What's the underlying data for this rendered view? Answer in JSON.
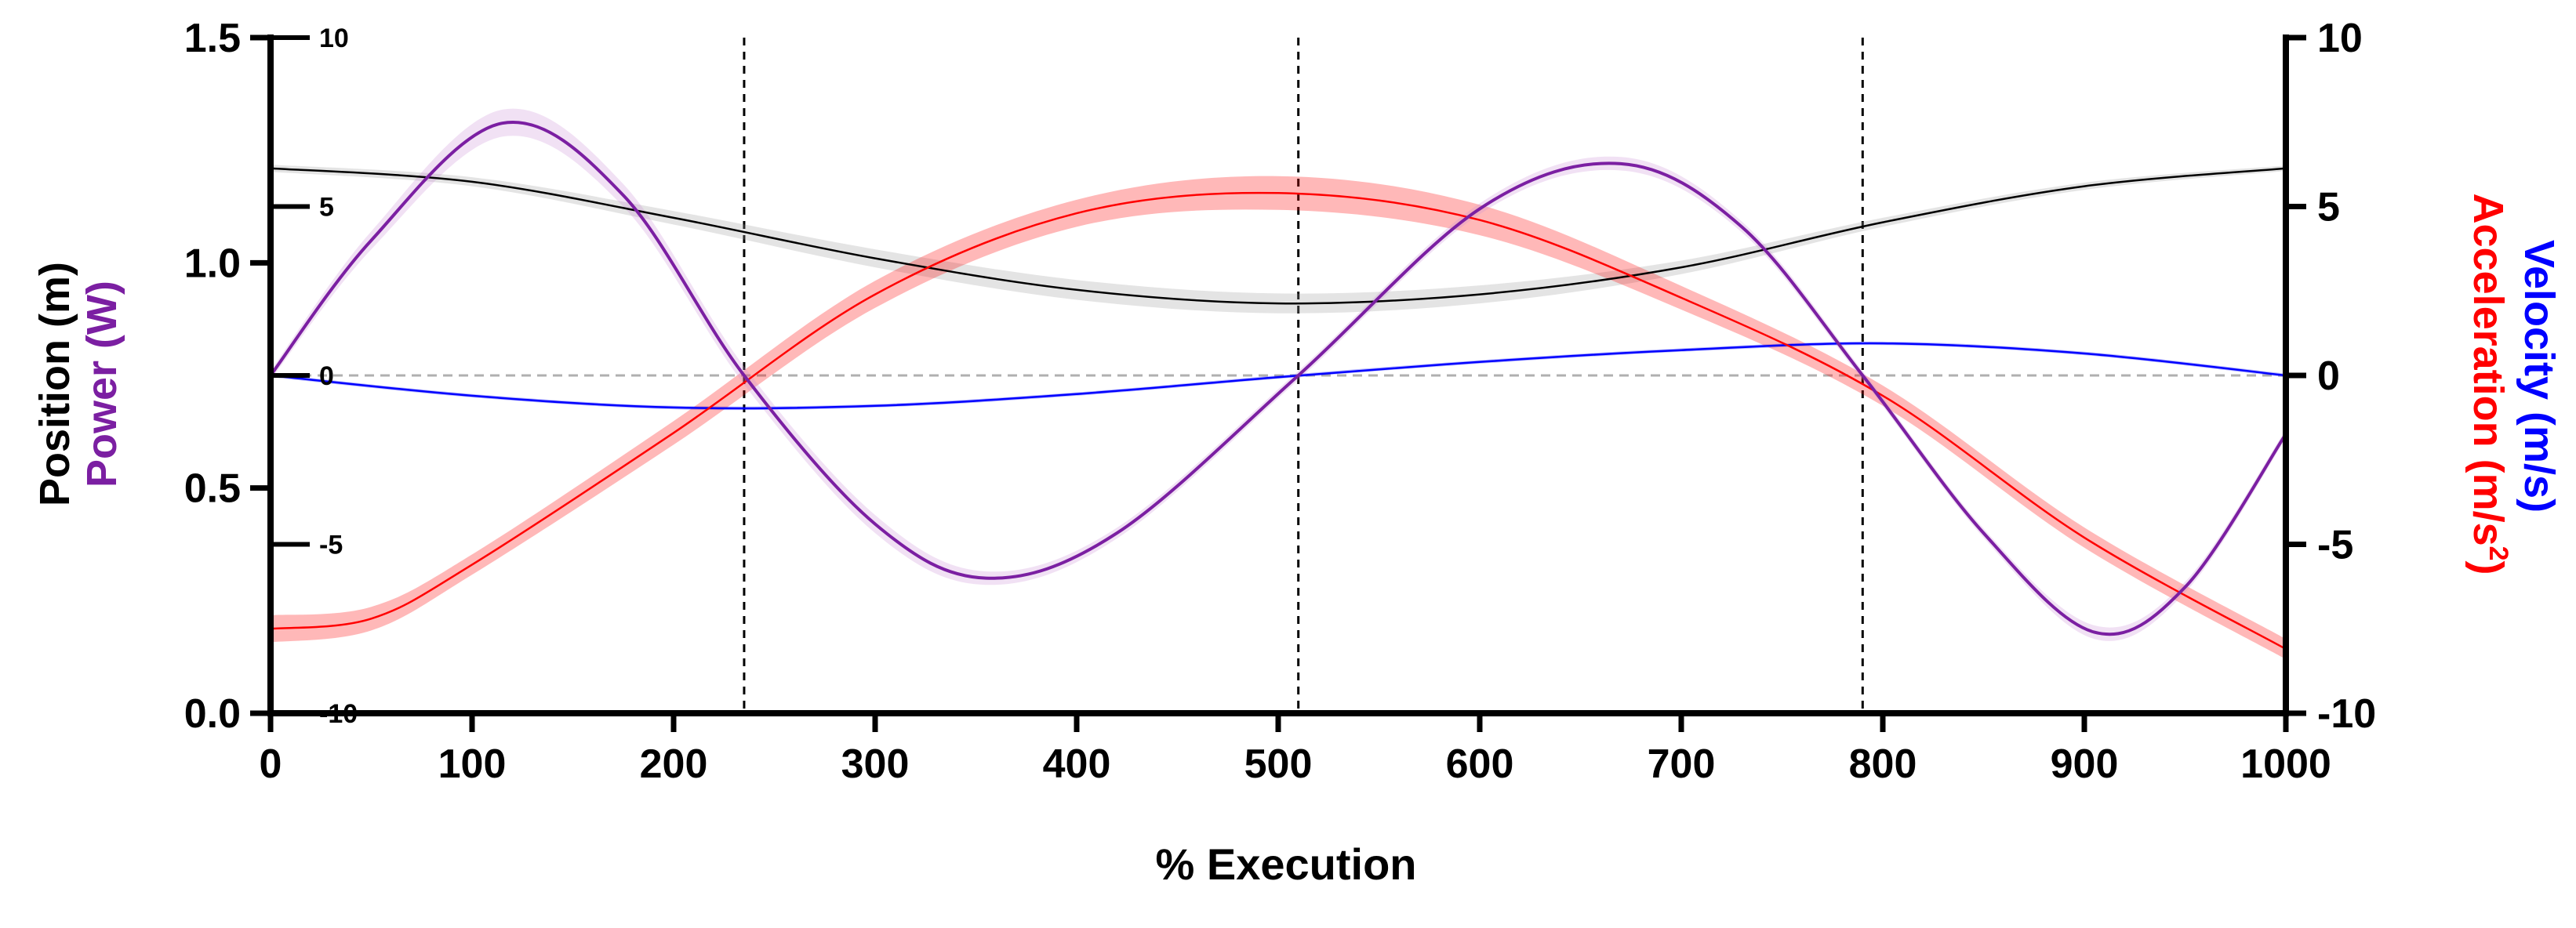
{
  "chart_data": {
    "type": "line",
    "xlabel": "% Execution",
    "x_ticks": [
      0,
      100,
      200,
      300,
      400,
      500,
      600,
      700,
      800,
      900,
      1000
    ],
    "xlim": [
      0,
      1000
    ],
    "left_axis": {
      "label_line1": "Position (m)",
      "label_line2": "Power (W)",
      "label_line1_color": "#000000",
      "label_line2_color": "#7B1FA2",
      "ylim": [
        0,
        1.5
      ],
      "ticks": [
        "0.0",
        "0.5",
        "1.0",
        "1.5"
      ],
      "tick_values": [
        0,
        0.5,
        1.0,
        1.5
      ]
    },
    "inner_axis": {
      "ylim": [
        -10,
        10
      ],
      "ticks": [
        "-10",
        "-5",
        "0",
        "5",
        "10"
      ],
      "tick_values": [
        -10,
        -5,
        0,
        5,
        10
      ]
    },
    "right_axis": {
      "label_velocity": "Velocity (m/s)",
      "label_acceleration": "Acceleration (m/s",
      "label_acceleration_sup": "2",
      "label_acceleration_end": ")",
      "velocity_color": "#0000FF",
      "acceleration_color": "#FF0000",
      "ylim": [
        -10,
        10
      ],
      "ticks": [
        "-10",
        "-5",
        "0",
        "5",
        "10"
      ],
      "tick_values": [
        -10,
        -5,
        0,
        5,
        10
      ]
    },
    "vertical_markers": [
      235,
      510,
      790
    ],
    "zero_line": 0,
    "series": [
      {
        "color": "#000000",
        "band_color": "#9e9e9e",
        "axis": "left",
        "x": [
          0,
          100,
          200,
          300,
          400,
          500,
          600,
          700,
          800,
          900,
          1000
        ],
        "values": [
          1.21,
          1.18,
          1.1,
          1.01,
          0.94,
          0.91,
          0.93,
          0.99,
          1.09,
          1.17,
          1.21
        ],
        "band": [
          0.008,
          0.01,
          0.015,
          0.02,
          0.022,
          0.022,
          0.02,
          0.015,
          0.01,
          0.008,
          0.006
        ]
      },
      {
        "color": "#0000FF",
        "band_color": "#0000FF",
        "axis": "right",
        "x": [
          0,
          100,
          200,
          300,
          400,
          500,
          600,
          700,
          800,
          900,
          1000
        ],
        "values": [
          0,
          -0.6,
          -0.95,
          -0.9,
          -0.55,
          -0.05,
          0.4,
          0.75,
          0.95,
          0.65,
          0
        ],
        "band": [
          0.05,
          0.05,
          0.05,
          0.05,
          0.05,
          0.05,
          0.05,
          0.05,
          0.05,
          0.05,
          0.05
        ]
      },
      {
        "color": "#FF0000",
        "band_color": "#FF0000",
        "axis": "right",
        "x": [
          0,
          50,
          100,
          200,
          300,
          400,
          500,
          600,
          700,
          800,
          900,
          1000
        ],
        "values": [
          -7.5,
          -7.2,
          -5.6,
          -1.7,
          2.4,
          4.8,
          5.4,
          4.6,
          2.3,
          -0.6,
          -4.8,
          -8.1
        ],
        "band": [
          0.4,
          0.35,
          0.3,
          0.35,
          0.4,
          0.4,
          0.5,
          0.45,
          0.35,
          0.3,
          0.3,
          0.3
        ]
      },
      {
        "color": "#7B1FA2",
        "band_color": "#CE93D8",
        "axis": "left",
        "x": [
          0,
          50,
          115,
          175,
          235,
          300,
          355,
          420,
          510,
          600,
          670,
          730,
          790,
          850,
          905,
          950,
          1000
        ],
        "values": [
          0.75,
          1.05,
          1.31,
          1.15,
          0.75,
          0.42,
          0.3,
          0.4,
          0.75,
          1.12,
          1.22,
          1.08,
          0.75,
          0.4,
          0.18,
          0.28,
          0.62
        ],
        "band": [
          0.01,
          0.02,
          0.03,
          0.025,
          0.02,
          0.02,
          0.015,
          0.012,
          0.01,
          0.012,
          0.015,
          0.012,
          0.01,
          0.01,
          0.015,
          0.012,
          0.01
        ]
      }
    ]
  }
}
